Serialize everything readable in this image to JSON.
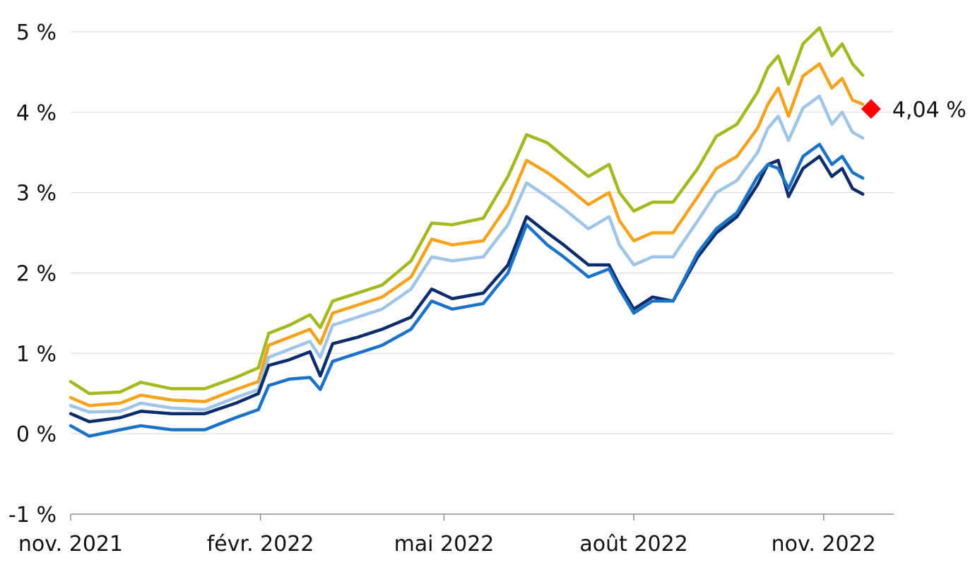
{
  "chart_data": {
    "type": "line",
    "title": "",
    "xlabel": "",
    "ylabel": "",
    "ylim": [
      -1,
      5
    ],
    "xlim": [
      "2021-11-01",
      "2022-12-05"
    ],
    "grid": true,
    "legend": "none",
    "y_ticks": [
      {
        "value": -1,
        "label": "-1 %"
      },
      {
        "value": 0,
        "label": "0 %"
      },
      {
        "value": 1,
        "label": "1 %"
      },
      {
        "value": 2,
        "label": "2 %"
      },
      {
        "value": 3,
        "label": "3 %"
      },
      {
        "value": 4,
        "label": "4 %"
      },
      {
        "value": 5,
        "label": "5 %"
      }
    ],
    "x_ticks": [
      {
        "value": "2021-11-01",
        "label": "nov. 2021"
      },
      {
        "value": "2022-02-01",
        "label": "févr. 2022"
      },
      {
        "value": "2022-05-01",
        "label": "mai 2022"
      },
      {
        "value": "2022-08-01",
        "label": "août 2022"
      },
      {
        "value": "2022-11-01",
        "label": "nov. 2022"
      }
    ],
    "series": [
      {
        "color": "#a5b820",
        "points": [
          [
            "2021-11-01",
            0.65
          ],
          [
            "2021-11-10",
            0.5
          ],
          [
            "2021-11-25",
            0.52
          ],
          [
            "2021-12-05",
            0.64
          ],
          [
            "2021-12-20",
            0.56
          ],
          [
            "2022-01-05",
            0.56
          ],
          [
            "2022-01-20",
            0.7
          ],
          [
            "2022-01-31",
            0.82
          ],
          [
            "2022-02-05",
            1.25
          ],
          [
            "2022-02-15",
            1.35
          ],
          [
            "2022-02-25",
            1.48
          ],
          [
            "2022-03-02",
            1.32
          ],
          [
            "2022-03-08",
            1.65
          ],
          [
            "2022-03-20",
            1.75
          ],
          [
            "2022-04-01",
            1.85
          ],
          [
            "2022-04-15",
            2.15
          ],
          [
            "2022-04-25",
            2.62
          ],
          [
            "2022-05-05",
            2.6
          ],
          [
            "2022-05-20",
            2.68
          ],
          [
            "2022-06-01",
            3.2
          ],
          [
            "2022-06-10",
            3.72
          ],
          [
            "2022-06-20",
            3.62
          ],
          [
            "2022-06-28",
            3.45
          ],
          [
            "2022-07-10",
            3.2
          ],
          [
            "2022-07-20",
            3.35
          ],
          [
            "2022-07-25",
            3.0
          ],
          [
            "2022-08-01",
            2.77
          ],
          [
            "2022-08-10",
            2.88
          ],
          [
            "2022-08-20",
            2.88
          ],
          [
            "2022-09-01",
            3.3
          ],
          [
            "2022-09-10",
            3.7
          ],
          [
            "2022-09-20",
            3.85
          ],
          [
            "2022-09-30",
            4.25
          ],
          [
            "2022-10-05",
            4.55
          ],
          [
            "2022-10-10",
            4.7
          ],
          [
            "2022-10-15",
            4.35
          ],
          [
            "2022-10-22",
            4.85
          ],
          [
            "2022-10-30",
            5.05
          ],
          [
            "2022-11-05",
            4.7
          ],
          [
            "2022-11-10",
            4.85
          ],
          [
            "2022-11-15",
            4.6
          ],
          [
            "2022-11-20",
            4.46
          ]
        ]
      },
      {
        "color": "#f5a21c",
        "points": [
          [
            "2021-11-01",
            0.45
          ],
          [
            "2021-11-10",
            0.35
          ],
          [
            "2021-11-25",
            0.38
          ],
          [
            "2021-12-05",
            0.48
          ],
          [
            "2021-12-20",
            0.42
          ],
          [
            "2022-01-05",
            0.4
          ],
          [
            "2022-01-20",
            0.55
          ],
          [
            "2022-01-31",
            0.65
          ],
          [
            "2022-02-05",
            1.1
          ],
          [
            "2022-02-15",
            1.2
          ],
          [
            "2022-02-25",
            1.3
          ],
          [
            "2022-03-02",
            1.12
          ],
          [
            "2022-03-08",
            1.5
          ],
          [
            "2022-03-20",
            1.6
          ],
          [
            "2022-04-01",
            1.7
          ],
          [
            "2022-04-15",
            1.95
          ],
          [
            "2022-04-25",
            2.42
          ],
          [
            "2022-05-05",
            2.35
          ],
          [
            "2022-05-20",
            2.4
          ],
          [
            "2022-06-01",
            2.85
          ],
          [
            "2022-06-10",
            3.4
          ],
          [
            "2022-06-20",
            3.25
          ],
          [
            "2022-06-28",
            3.1
          ],
          [
            "2022-07-10",
            2.85
          ],
          [
            "2022-07-20",
            3.0
          ],
          [
            "2022-07-25",
            2.65
          ],
          [
            "2022-08-01",
            2.4
          ],
          [
            "2022-08-10",
            2.5
          ],
          [
            "2022-08-20",
            2.5
          ],
          [
            "2022-09-01",
            2.95
          ],
          [
            "2022-09-10",
            3.3
          ],
          [
            "2022-09-20",
            3.45
          ],
          [
            "2022-09-30",
            3.8
          ],
          [
            "2022-10-05",
            4.1
          ],
          [
            "2022-10-10",
            4.3
          ],
          [
            "2022-10-15",
            3.95
          ],
          [
            "2022-10-22",
            4.45
          ],
          [
            "2022-10-30",
            4.6
          ],
          [
            "2022-11-05",
            4.3
          ],
          [
            "2022-11-10",
            4.42
          ],
          [
            "2022-11-15",
            4.15
          ],
          [
            "2022-11-20",
            4.1
          ]
        ]
      },
      {
        "color": "#9ec4e8",
        "points": [
          [
            "2021-11-01",
            0.35
          ],
          [
            "2021-11-10",
            0.27
          ],
          [
            "2021-11-25",
            0.28
          ],
          [
            "2021-12-05",
            0.38
          ],
          [
            "2021-12-20",
            0.32
          ],
          [
            "2022-01-05",
            0.3
          ],
          [
            "2022-01-20",
            0.45
          ],
          [
            "2022-01-31",
            0.55
          ],
          [
            "2022-02-05",
            0.95
          ],
          [
            "2022-02-15",
            1.05
          ],
          [
            "2022-02-25",
            1.15
          ],
          [
            "2022-03-02",
            0.95
          ],
          [
            "2022-03-08",
            1.35
          ],
          [
            "2022-03-20",
            1.45
          ],
          [
            "2022-04-01",
            1.55
          ],
          [
            "2022-04-15",
            1.8
          ],
          [
            "2022-04-25",
            2.2
          ],
          [
            "2022-05-05",
            2.15
          ],
          [
            "2022-05-20",
            2.2
          ],
          [
            "2022-06-01",
            2.6
          ],
          [
            "2022-06-10",
            3.12
          ],
          [
            "2022-06-20",
            2.95
          ],
          [
            "2022-06-28",
            2.8
          ],
          [
            "2022-07-10",
            2.55
          ],
          [
            "2022-07-20",
            2.7
          ],
          [
            "2022-07-25",
            2.35
          ],
          [
            "2022-08-01",
            2.1
          ],
          [
            "2022-08-10",
            2.2
          ],
          [
            "2022-08-20",
            2.2
          ],
          [
            "2022-09-01",
            2.65
          ],
          [
            "2022-09-10",
            3.0
          ],
          [
            "2022-09-20",
            3.15
          ],
          [
            "2022-09-30",
            3.5
          ],
          [
            "2022-10-05",
            3.8
          ],
          [
            "2022-10-10",
            3.95
          ],
          [
            "2022-10-15",
            3.65
          ],
          [
            "2022-10-22",
            4.05
          ],
          [
            "2022-10-30",
            4.2
          ],
          [
            "2022-11-05",
            3.85
          ],
          [
            "2022-11-10",
            4.0
          ],
          [
            "2022-11-15",
            3.75
          ],
          [
            "2022-11-20",
            3.68
          ]
        ]
      },
      {
        "color": "#0c2d6b",
        "points": [
          [
            "2021-11-01",
            0.25
          ],
          [
            "2021-11-10",
            0.15
          ],
          [
            "2021-11-25",
            0.2
          ],
          [
            "2021-12-05",
            0.28
          ],
          [
            "2021-12-20",
            0.25
          ],
          [
            "2022-01-05",
            0.25
          ],
          [
            "2022-01-20",
            0.38
          ],
          [
            "2022-01-31",
            0.5
          ],
          [
            "2022-02-05",
            0.85
          ],
          [
            "2022-02-15",
            0.92
          ],
          [
            "2022-02-25",
            1.02
          ],
          [
            "2022-03-02",
            0.72
          ],
          [
            "2022-03-08",
            1.12
          ],
          [
            "2022-03-20",
            1.2
          ],
          [
            "2022-04-01",
            1.3
          ],
          [
            "2022-04-15",
            1.45
          ],
          [
            "2022-04-25",
            1.8
          ],
          [
            "2022-05-05",
            1.68
          ],
          [
            "2022-05-20",
            1.75
          ],
          [
            "2022-06-01",
            2.1
          ],
          [
            "2022-06-10",
            2.7
          ],
          [
            "2022-06-20",
            2.5
          ],
          [
            "2022-06-28",
            2.35
          ],
          [
            "2022-07-10",
            2.1
          ],
          [
            "2022-07-20",
            2.1
          ],
          [
            "2022-07-25",
            1.85
          ],
          [
            "2022-08-01",
            1.55
          ],
          [
            "2022-08-10",
            1.7
          ],
          [
            "2022-08-20",
            1.65
          ],
          [
            "2022-09-01",
            2.2
          ],
          [
            "2022-09-10",
            2.5
          ],
          [
            "2022-09-20",
            2.7
          ],
          [
            "2022-09-30",
            3.1
          ],
          [
            "2022-10-05",
            3.35
          ],
          [
            "2022-10-10",
            3.4
          ],
          [
            "2022-10-15",
            2.95
          ],
          [
            "2022-10-22",
            3.3
          ],
          [
            "2022-10-30",
            3.45
          ],
          [
            "2022-11-05",
            3.2
          ],
          [
            "2022-11-10",
            3.3
          ],
          [
            "2022-11-15",
            3.05
          ],
          [
            "2022-11-20",
            2.98
          ]
        ]
      },
      {
        "color": "#1a73c8",
        "points": [
          [
            "2021-11-01",
            0.1
          ],
          [
            "2021-11-10",
            -0.03
          ],
          [
            "2021-11-25",
            0.05
          ],
          [
            "2021-12-05",
            0.1
          ],
          [
            "2021-12-20",
            0.05
          ],
          [
            "2022-01-05",
            0.05
          ],
          [
            "2022-01-20",
            0.2
          ],
          [
            "2022-01-31",
            0.3
          ],
          [
            "2022-02-05",
            0.6
          ],
          [
            "2022-02-15",
            0.68
          ],
          [
            "2022-02-25",
            0.7
          ],
          [
            "2022-03-02",
            0.55
          ],
          [
            "2022-03-08",
            0.9
          ],
          [
            "2022-03-20",
            1.0
          ],
          [
            "2022-04-01",
            1.1
          ],
          [
            "2022-04-15",
            1.3
          ],
          [
            "2022-04-25",
            1.65
          ],
          [
            "2022-05-05",
            1.55
          ],
          [
            "2022-05-20",
            1.62
          ],
          [
            "2022-06-01",
            2.0
          ],
          [
            "2022-06-10",
            2.6
          ],
          [
            "2022-06-20",
            2.35
          ],
          [
            "2022-06-28",
            2.2
          ],
          [
            "2022-07-10",
            1.95
          ],
          [
            "2022-07-20",
            2.05
          ],
          [
            "2022-07-25",
            1.8
          ],
          [
            "2022-08-01",
            1.5
          ],
          [
            "2022-08-10",
            1.65
          ],
          [
            "2022-08-20",
            1.65
          ],
          [
            "2022-09-01",
            2.25
          ],
          [
            "2022-09-10",
            2.55
          ],
          [
            "2022-09-20",
            2.75
          ],
          [
            "2022-09-30",
            3.2
          ],
          [
            "2022-10-05",
            3.35
          ],
          [
            "2022-10-10",
            3.3
          ],
          [
            "2022-10-15",
            3.05
          ],
          [
            "2022-10-22",
            3.45
          ],
          [
            "2022-10-30",
            3.6
          ],
          [
            "2022-11-05",
            3.35
          ],
          [
            "2022-11-10",
            3.45
          ],
          [
            "2022-11-15",
            3.25
          ],
          [
            "2022-11-20",
            3.18
          ]
        ]
      }
    ],
    "annotation": {
      "date": "2022-11-24",
      "value": 4.04,
      "label": "4,04 %",
      "marker": "diamond",
      "color": "#ff0000"
    }
  }
}
